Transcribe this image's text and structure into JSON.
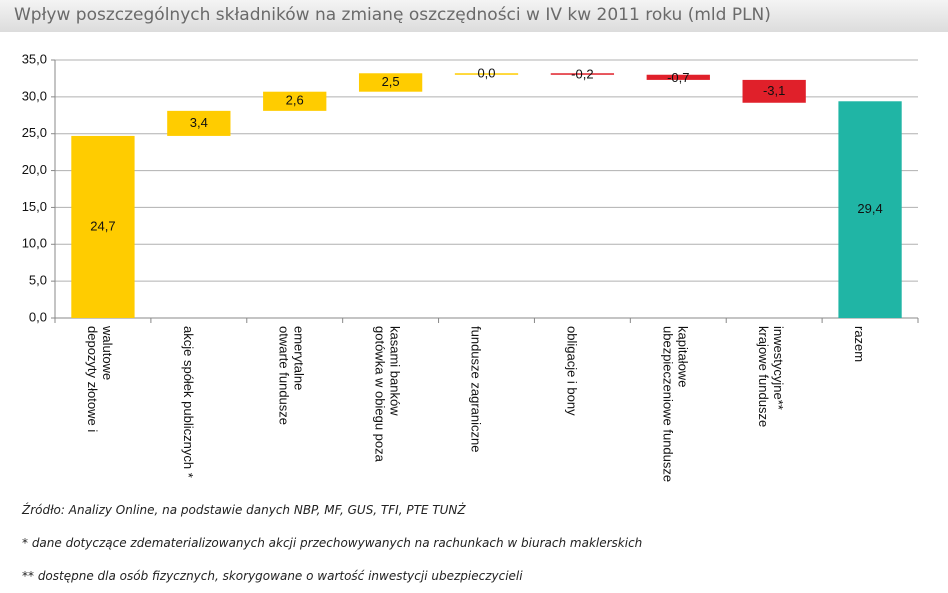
{
  "chart_data": {
    "type": "waterfall",
    "title": "Wpływ poszczególnych składników na zmianę oszczędności w IV kw 2011 roku (mld PLN)",
    "categories": [
      "depozyty złotowe i walutowe",
      "akcje spółek publicznych *",
      "otwarte fundusze emerytalne",
      "gotówka w obiegu poza kasami banków",
      "fundusze zagraniczne",
      "obligacje i bony",
      "ubezpieczeniowe fundusze kapitałowe",
      "krajowe fundusze inwestycyjne**",
      "razem"
    ],
    "values": [
      24.7,
      3.4,
      2.6,
      2.5,
      0.0,
      -0.2,
      -0.7,
      -3.1,
      29.4
    ],
    "value_labels": [
      "24,7",
      "3,4",
      "2,6",
      "2,5",
      "0,0",
      "-0,2",
      "-0,7",
      "-3,1",
      "29,4"
    ],
    "colors": {
      "increase": "#ffcc00",
      "decrease": "#e0202a",
      "total": "#20b5a5"
    },
    "ylim": [
      0,
      35
    ],
    "yticks": [
      {
        "value": 0,
        "label": "0,0"
      },
      {
        "value": 5,
        "label": "5,0"
      },
      {
        "value": 10,
        "label": "10,0"
      },
      {
        "value": 15,
        "label": "15,0"
      },
      {
        "value": 20,
        "label": "20,0"
      },
      {
        "value": 25,
        "label": "25,0"
      },
      {
        "value": 30,
        "label": "30,0"
      },
      {
        "value": 35,
        "label": "35,0"
      }
    ],
    "grid": true,
    "footnotes": [
      "Źródło: Analizy Online, na podstawie danych NBP, MF, GUS, TFI, PTE TUNŻ",
      "* dane dotyczące zdematerializowanych akcji przechowywanych na rachunkach w biurach maklerskich",
      "** dostępne dla osób fizycznych, skorygowane o wartość inwestycji ubezpieczycieli"
    ]
  }
}
